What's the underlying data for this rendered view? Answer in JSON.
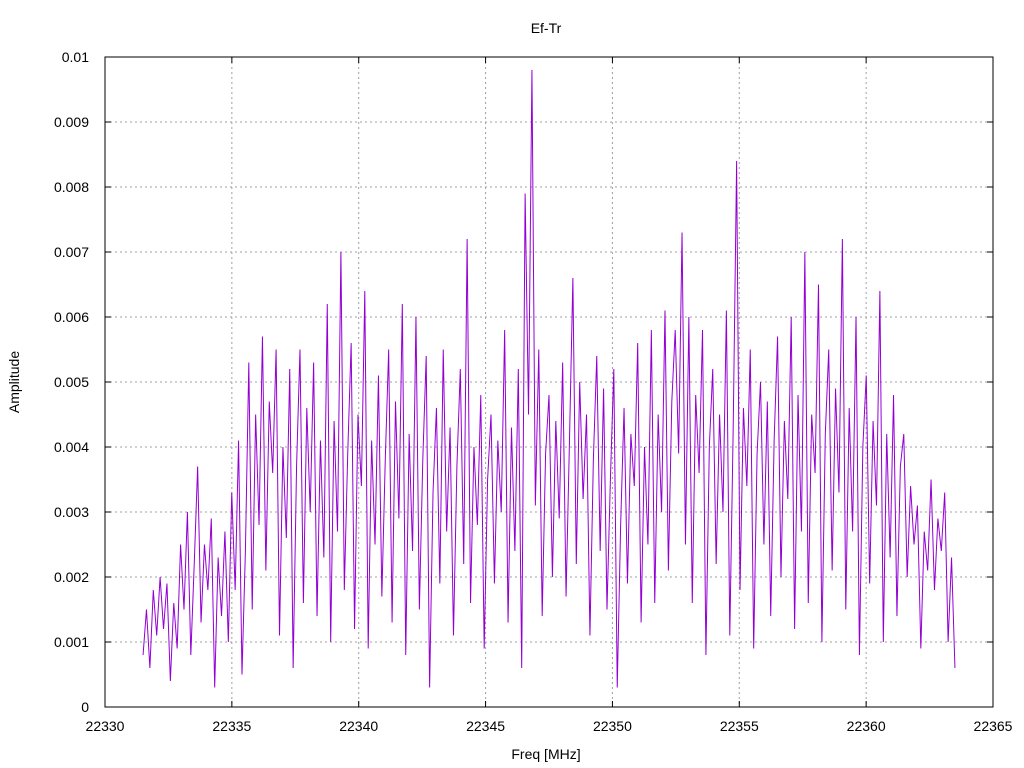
{
  "chart_data": {
    "type": "line",
    "title": "Ef-Tr",
    "xlabel": "Freq [MHz]",
    "ylabel": "Amplitude",
    "xlim": [
      22330,
      22365
    ],
    "ylim": [
      0,
      0.01
    ],
    "x_ticks": [
      "22330",
      "22335",
      "22340",
      "22345",
      "22350",
      "22355",
      "22360",
      "22365"
    ],
    "y_ticks": [
      "0",
      "0.001",
      "0.002",
      "0.003",
      "0.004",
      "0.005",
      "0.006",
      "0.007",
      "0.008",
      "0.009",
      "0.01"
    ],
    "grid": true,
    "line_color": "#9400d3",
    "series": [
      {
        "x_start": 22331.5,
        "x_end": 22363.5,
        "y": [
          0.0008,
          0.0015,
          0.0006,
          0.0018,
          0.0011,
          0.002,
          0.0012,
          0.0019,
          0.0004,
          0.0016,
          0.0009,
          0.0025,
          0.0015,
          0.003,
          0.0008,
          0.0022,
          0.0037,
          0.0013,
          0.0025,
          0.0018,
          0.0029,
          0.0003,
          0.0023,
          0.0014,
          0.0027,
          0.001,
          0.0033,
          0.0018,
          0.0041,
          0.0005,
          0.0024,
          0.0053,
          0.0015,
          0.0045,
          0.0028,
          0.0057,
          0.0021,
          0.0047,
          0.0036,
          0.0055,
          0.0011,
          0.004,
          0.0026,
          0.0052,
          0.0006,
          0.0037,
          0.0055,
          0.0016,
          0.0046,
          0.003,
          0.0053,
          0.0014,
          0.0041,
          0.0023,
          0.0062,
          0.001,
          0.0044,
          0.0027,
          0.007,
          0.0018,
          0.0039,
          0.0056,
          0.0012,
          0.0045,
          0.0034,
          0.0064,
          0.0009,
          0.0041,
          0.0025,
          0.0051,
          0.0017,
          0.0038,
          0.0055,
          0.0013,
          0.0047,
          0.0029,
          0.0062,
          0.0008,
          0.0042,
          0.0024,
          0.006,
          0.0015,
          0.0038,
          0.0054,
          0.0003,
          0.0033,
          0.0046,
          0.0019,
          0.0055,
          0.0027,
          0.0043,
          0.0011,
          0.0037,
          0.0052,
          0.0022,
          0.0072,
          0.0016,
          0.004,
          0.0028,
          0.0048,
          0.0009,
          0.0035,
          0.0045,
          0.0019,
          0.0041,
          0.003,
          0.0058,
          0.0013,
          0.0043,
          0.0024,
          0.0052,
          0.0006,
          0.0079,
          0.0045,
          0.0098,
          0.0031,
          0.0055,
          0.0014,
          0.0039,
          0.0048,
          0.002,
          0.0044,
          0.0029,
          0.0053,
          0.0017,
          0.0041,
          0.0066,
          0.0022,
          0.005,
          0.0032,
          0.0045,
          0.0011,
          0.0038,
          0.0054,
          0.0024,
          0.0049,
          0.0015,
          0.0035,
          0.0052,
          0.0003,
          0.0028,
          0.0046,
          0.0019,
          0.0042,
          0.0034,
          0.0056,
          0.0013,
          0.004,
          0.0025,
          0.0058,
          0.0016,
          0.0045,
          0.003,
          0.0061,
          0.0021,
          0.0047,
          0.0058,
          0.0039,
          0.0073,
          0.0025,
          0.006,
          0.0016,
          0.0048,
          0.0036,
          0.0058,
          0.0008,
          0.004,
          0.0052,
          0.0022,
          0.0045,
          0.003,
          0.0061,
          0.0011,
          0.0043,
          0.0084,
          0.0018,
          0.0046,
          0.0034,
          0.0055,
          0.0009,
          0.0039,
          0.005,
          0.0025,
          0.0047,
          0.0014,
          0.0041,
          0.0057,
          0.002,
          0.0044,
          0.0032,
          0.006,
          0.0012,
          0.0048,
          0.0027,
          0.007,
          0.0016,
          0.0045,
          0.0036,
          0.0065,
          0.001,
          0.0042,
          0.0055,
          0.0021,
          0.0049,
          0.0033,
          0.0072,
          0.0015,
          0.0046,
          0.0027,
          0.006,
          0.0008,
          0.004,
          0.0051,
          0.0019,
          0.0044,
          0.0031,
          0.0064,
          0.001,
          0.0042,
          0.0023,
          0.0048,
          0.0014,
          0.0037,
          0.0042,
          0.002,
          0.0034,
          0.0025,
          0.0031,
          0.0009,
          0.0027,
          0.0021,
          0.0035,
          0.0018,
          0.0029,
          0.0024,
          0.0033,
          0.001,
          0.0023,
          0.0006
        ]
      }
    ]
  }
}
